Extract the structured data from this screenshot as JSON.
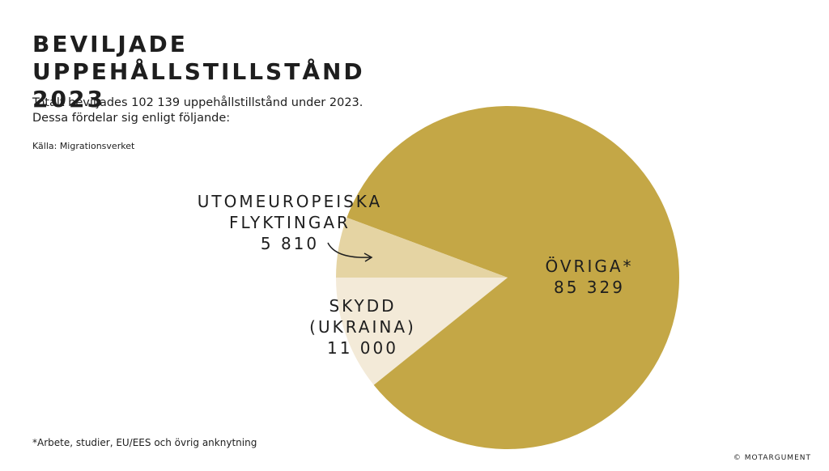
{
  "chart_data": {
    "type": "pie",
    "title": "BEVILJADE UPPEHÅLLSTILLSTÅND 2023",
    "subtitle": "Totalt beviljades 102 139 uppehållstillstånd under 2023.\nDessa fördelar sig enligt följande:",
    "source": "Källa: Migrationsverket",
    "footnote": "*Arbete, studier, EU/EES och  övrig anknytning",
    "copyright": "© MOTARGUMENT",
    "categories": [
      "SKYDD (UKRAINA)",
      "ÖVRIGA*",
      "UTOMEUROPEISKA FLYKTINGAR"
    ],
    "values": [
      11000,
      85329,
      5810
    ],
    "value_labels": [
      "11 000",
      "85 329",
      "5 810"
    ],
    "colors": [
      "#f3ead8",
      "#c4a746",
      "#e5d4a3"
    ]
  }
}
